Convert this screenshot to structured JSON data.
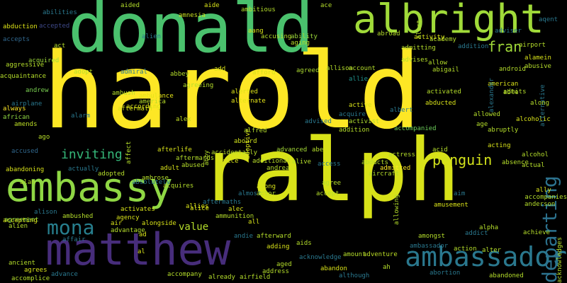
{
  "canvas": {
    "background": "#000000"
  },
  "words": [
    {
      "text": "harold",
      "color": "#fde725"
    },
    {
      "text": "ralph",
      "color": "#d8e219"
    },
    {
      "text": "donald",
      "color": "#4ac16d"
    },
    {
      "text": "albright",
      "color": "#a0da39"
    },
    {
      "text": "embassy",
      "color": "#8fd744"
    },
    {
      "text": "matthew",
      "color": "#472d7b"
    },
    {
      "text": "ambassador",
      "color": "#2a788e"
    },
    {
      "text": "mona",
      "color": "#277f8e"
    },
    {
      "text": "departing",
      "color": "#2c728e"
    },
    {
      "text": "fran",
      "color": "#a0da39"
    },
    {
      "text": "inviting",
      "color": "#35b779"
    },
    {
      "text": "penguin",
      "color": "#d2e21b"
    },
    {
      "text": "value",
      "color": "#b5de2b"
    },
    {
      "text": "alex",
      "color": "#c2df23"
    },
    {
      "text": "aboard",
      "color": "#d0e11c"
    },
    {
      "text": "advanced",
      "color": "#a5db36"
    },
    {
      "text": "adventure",
      "color": "#bddf26"
    },
    {
      "text": "ambassador",
      "color": "#2a788e"
    },
    {
      "text": "accompanied",
      "color": "#6ccd5a"
    },
    {
      "text": "activist",
      "color": "#addc30"
    },
    {
      "text": "active",
      "color": "#d8e219"
    },
    {
      "text": "amnesia",
      "color": "#c8e020"
    },
    {
      "text": "ability",
      "color": "#9dd93b"
    },
    {
      "text": "aging",
      "color": "#b8de29"
    },
    {
      "text": "abduction",
      "color": "#dde318"
    },
    {
      "text": "accepted",
      "color": "#3e4989"
    },
    {
      "text": "accepts",
      "color": "#31688e"
    },
    {
      "text": "agreement",
      "color": "#84d44b"
    },
    {
      "text": "acquired",
      "color": "#9dd93b"
    },
    {
      "text": "aggressive",
      "color": "#b5de2b"
    },
    {
      "text": "acquaintance",
      "color": "#b5de2b"
    },
    {
      "text": "andrew",
      "color": "#7ad151"
    },
    {
      "text": "always",
      "color": "#fde725"
    },
    {
      "text": "african",
      "color": "#90d743"
    },
    {
      "text": "amends",
      "color": "#bddf26"
    },
    {
      "text": "ago",
      "color": "#b8de29"
    },
    {
      "text": "accused",
      "color": "#31688e"
    },
    {
      "text": "agreeing",
      "color": "#b5de2b"
    },
    {
      "text": "according",
      "color": "#d8e219"
    },
    {
      "text": "alarm",
      "color": "#2a788e"
    },
    {
      "text": "america",
      "color": "#b8de29"
    },
    {
      "text": "ambulance",
      "color": "#e5e419"
    },
    {
      "text": "abbey",
      "color": "#b5de2b"
    },
    {
      "text": "afford",
      "color": "#d8e219"
    },
    {
      "text": "agreed",
      "color": "#addc30"
    },
    {
      "text": "allison",
      "color": "#b5de2b"
    },
    {
      "text": "account",
      "color": "#b5de2b"
    },
    {
      "text": "allie",
      "color": "#21918c"
    },
    {
      "text": "alerted",
      "color": "#dde318"
    },
    {
      "text": "alternate",
      "color": "#e5e419"
    },
    {
      "text": "adoptive",
      "color": "#d8e219"
    },
    {
      "text": "alfred",
      "color": "#b5de2b"
    },
    {
      "text": "afterlife",
      "color": "#d8e219"
    },
    {
      "text": "accidentally",
      "color": "#b8de29"
    },
    {
      "text": "advice",
      "color": "#d8e219"
    },
    {
      "text": "additional",
      "color": "#b8de29"
    },
    {
      "text": "alive",
      "color": "#b5de2b"
    },
    {
      "text": "access",
      "color": "#2a788e"
    },
    {
      "text": "abducts",
      "color": "#b5de2b"
    },
    {
      "text": "admitted",
      "color": "#fde725"
    },
    {
      "text": "actress",
      "color": "#b5de2b"
    },
    {
      "text": "acid",
      "color": "#b5de2b"
    },
    {
      "text": "aircraft",
      "color": "#b5de2b"
    },
    {
      "text": "adopted",
      "color": "#b5de2b"
    },
    {
      "text": "ambrose",
      "color": "#b5de2b"
    },
    {
      "text": "adult",
      "color": "#d8e219"
    },
    {
      "text": "abused",
      "color": "#b5de2b"
    },
    {
      "text": "andrea",
      "color": "#b5de2b"
    },
    {
      "text": "among",
      "color": "#d8e219"
    },
    {
      "text": "agree",
      "color": "#b5de2b"
    },
    {
      "text": "accept",
      "color": "#b5de2b"
    },
    {
      "text": "almost",
      "color": "#2a788e"
    },
    {
      "text": "actor",
      "color": "#b5de2b"
    },
    {
      "text": "alec",
      "color": "#d8e219"
    },
    {
      "text": "ammunition",
      "color": "#b5de2b"
    },
    {
      "text": "andie",
      "color": "#2a788e"
    },
    {
      "text": "afterward",
      "color": "#b5de2b"
    },
    {
      "text": "adding",
      "color": "#d8e219"
    },
    {
      "text": "acknowledge",
      "color": "#2a788e"
    },
    {
      "text": "amount",
      "color": "#b5de2b"
    },
    {
      "text": "abandon",
      "color": "#d8e219"
    },
    {
      "text": "although",
      "color": "#2a788e"
    },
    {
      "text": "aged",
      "color": "#b5de2b"
    },
    {
      "text": "address",
      "color": "#b5de2b"
    },
    {
      "text": "airfield",
      "color": "#b5de2b"
    },
    {
      "text": "already",
      "color": "#b5de2b"
    },
    {
      "text": "accompany",
      "color": "#b5de2b"
    },
    {
      "text": "ah",
      "color": "#b5de2b"
    },
    {
      "text": "amongst",
      "color": "#b5de2b"
    },
    {
      "text": "amusement",
      "color": "#d8e219"
    },
    {
      "text": "aim",
      "color": "#2a788e"
    },
    {
      "text": "addict",
      "color": "#2a788e"
    },
    {
      "text": "alpha",
      "color": "#b5de2b"
    },
    {
      "text": "action",
      "color": "#b5de2b"
    },
    {
      "text": "alter",
      "color": "#b5de2b"
    },
    {
      "text": "abortion",
      "color": "#2a788e"
    },
    {
      "text": "abandoned",
      "color": "#b5de2b"
    },
    {
      "text": "achieve",
      "color": "#b5de2b"
    },
    {
      "text": "ally",
      "color": "#d8e219"
    },
    {
      "text": "anderson",
      "color": "#b5de2b"
    },
    {
      "text": "accompanies",
      "color": "#b5de2b"
    },
    {
      "text": "acknowledges",
      "color": "#b5de2b"
    },
    {
      "text": "absence",
      "color": "#b5de2b"
    },
    {
      "text": "actual",
      "color": "#b5de2b"
    },
    {
      "text": "alcohol",
      "color": "#b5de2b"
    },
    {
      "text": "acting",
      "color": "#d8e219"
    },
    {
      "text": "abruptly",
      "color": "#b5de2b"
    },
    {
      "text": "alcoholic",
      "color": "#d8e219"
    },
    {
      "text": "allowed",
      "color": "#b5de2b"
    },
    {
      "text": "age",
      "color": "#b5de2b"
    },
    {
      "text": "american",
      "color": "#d8e219"
    },
    {
      "text": "admits",
      "color": "#b5de2b"
    },
    {
      "text": "able",
      "color": "#b5de2b"
    },
    {
      "text": "abusive",
      "color": "#b5de2b"
    },
    {
      "text": "alamein",
      "color": "#d8e219"
    },
    {
      "text": "android",
      "color": "#b5de2b"
    },
    {
      "text": "airport",
      "color": "#b5de2b"
    },
    {
      "text": "academy",
      "color": "#b5de2b"
    },
    {
      "text": "advises",
      "color": "#b5de2b"
    },
    {
      "text": "allow",
      "color": "#b5de2b"
    },
    {
      "text": "abigail",
      "color": "#b5de2b"
    },
    {
      "text": "activity",
      "color": "#d8e219"
    },
    {
      "text": "admitting",
      "color": "#b5de2b"
    },
    {
      "text": "abroad",
      "color": "#b5de2b"
    },
    {
      "text": "alert",
      "color": "#b5de2b"
    },
    {
      "text": "aide",
      "color": "#d8e219"
    },
    {
      "text": "ambitious",
      "color": "#b5de2b"
    },
    {
      "text": "ace",
      "color": "#b5de2b"
    },
    {
      "text": "aided",
      "color": "#b5de2b"
    },
    {
      "text": "accusing",
      "color": "#b5de2b"
    },
    {
      "text": "aang",
      "color": "#d8e219"
    },
    {
      "text": "alien",
      "color": "#2a788e"
    },
    {
      "text": "act",
      "color": "#b5de2b"
    },
    {
      "text": "adopt",
      "color": "#b5de2b"
    },
    {
      "text": "admiral",
      "color": "#2a788e"
    },
    {
      "text": "add",
      "color": "#d8e219"
    },
    {
      "text": "ambush",
      "color": "#b5de2b"
    },
    {
      "text": "activated",
      "color": "#b5de2b"
    },
    {
      "text": "abducted",
      "color": "#d8e219"
    },
    {
      "text": "ad",
      "color": "#d8e219"
    },
    {
      "text": "al",
      "color": "#d8e219"
    },
    {
      "text": "affair",
      "color": "#2a788e"
    },
    {
      "text": "advance",
      "color": "#2a788e"
    },
    {
      "text": "accomplice",
      "color": "#b5de2b"
    },
    {
      "text": "agrees",
      "color": "#d8e219"
    },
    {
      "text": "ancient",
      "color": "#b5de2b"
    },
    {
      "text": "air",
      "color": "#d8e219"
    },
    {
      "text": "advantage",
      "color": "#b5de2b"
    },
    {
      "text": "agency",
      "color": "#d8e219"
    },
    {
      "text": "activates",
      "color": "#d8e219"
    },
    {
      "text": "alongside",
      "color": "#d8e219"
    },
    {
      "text": "ambushed",
      "color": "#b5de2b"
    },
    {
      "text": "accepting",
      "color": "#d8e219"
    },
    {
      "text": "alien",
      "color": "#b5de2b"
    },
    {
      "text": "alison",
      "color": "#2a788e"
    },
    {
      "text": "abandoning",
      "color": "#d8e219"
    },
    {
      "text": "alan",
      "color": "#b5de2b"
    },
    {
      "text": "actually",
      "color": "#2a788e"
    },
    {
      "text": "affect",
      "color": "#b5de2b"
    },
    {
      "text": "aftermath",
      "color": "#d8e219"
    },
    {
      "text": "acquire",
      "color": "#2a788e"
    },
    {
      "text": "addition",
      "color": "#b5de2b"
    },
    {
      "text": "allies",
      "color": "#d8e219"
    },
    {
      "text": "abby",
      "color": "#b5de2b"
    },
    {
      "text": "absolutely",
      "color": "#2a788e"
    },
    {
      "text": "airplane",
      "color": "#2a788e"
    },
    {
      "text": "aftermaths",
      "color": "#2a788e"
    },
    {
      "text": "all",
      "color": "#d8e219"
    },
    {
      "text": "allowing",
      "color": "#b5de2b"
    },
    {
      "text": "alice",
      "color": "#d8e219"
    },
    {
      "text": "aftermards",
      "color": "#b5de2b"
    },
    {
      "text": "abilities",
      "color": "#2a788e"
    },
    {
      "text": "alternative",
      "color": "#2a788e"
    },
    {
      "text": "adviser",
      "color": "#2a788e"
    },
    {
      "text": "aids",
      "color": "#b5de2b"
    },
    {
      "text": "advised",
      "color": "#2a788e"
    },
    {
      "text": "albert",
      "color": "#2a788e"
    },
    {
      "text": "along",
      "color": "#b5de2b"
    },
    {
      "text": "addition",
      "color": "#2a788e"
    },
    {
      "text": "alexander",
      "color": "#2a788e"
    },
    {
      "text": "acquires",
      "color": "#b5de2b"
    },
    {
      "text": "aqent",
      "color": "#2a788e"
    },
    {
      "text": "abe",
      "color": "#b5de2b"
    }
  ]
}
